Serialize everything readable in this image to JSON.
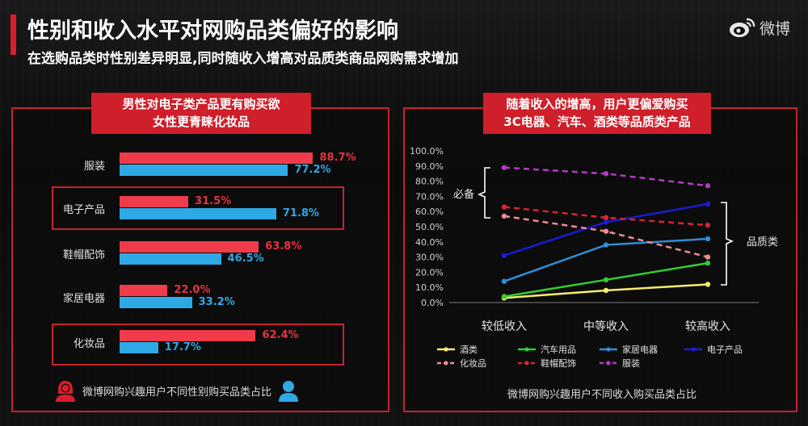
{
  "header": {
    "title": "性别和收入水平对网购品类偏好的影响",
    "subtitle": "在选购品类时性别差异明显,同时随收入增高对品质类商品网购需求增加",
    "logo_text": "微博"
  },
  "left_panel": {
    "tag_line1": "男性对电子类产品更有购买欲",
    "tag_line2": "女性更青睐化妆品",
    "footer": "微博网购兴趣用户不同性别购买品类占比"
  },
  "right_panel": {
    "tag_line1": "随着收入的增高，用户更偏爱购买",
    "tag_line2": "3C电器、汽车、酒类等品质类产品",
    "footer": "微博网购兴趣用户不同收入购买品类占比",
    "brace_top_label": "必备",
    "brace_right_label": "品质类"
  },
  "colors": {
    "accent": "#d81e2a",
    "female": "#ef3b4a",
    "male": "#2fa8e6"
  },
  "chart_data": [
    {
      "type": "bar",
      "categories": [
        "服装",
        "电子产品",
        "鞋帽配饰",
        "家居电器",
        "化妆品"
      ],
      "highlighted": [
        "电子产品",
        "化妆品"
      ],
      "series": [
        {
          "values": [
            88.7,
            31.5,
            63.8,
            22.0,
            62.4
          ],
          "labels": [
            "88.7%",
            "31.5%",
            "63.8%",
            "22.0%",
            "62.4%"
          ],
          "color": "#ef3b4a"
        },
        {
          "values": [
            77.2,
            71.8,
            46.5,
            33.2,
            17.7
          ],
          "labels": [
            "77.2%",
            "71.8%",
            "46.5%",
            "33.2%",
            "17.7%"
          ],
          "color": "#2fa8e6"
        }
      ],
      "xlim": [
        0,
        100
      ]
    },
    {
      "type": "line",
      "categories": [
        "较低收入",
        "中等收入",
        "较高收入"
      ],
      "yticks": [
        "0.0%",
        "10.0%",
        "20.0%",
        "30.0%",
        "40.0%",
        "50.0%",
        "60.0%",
        "70.0%",
        "80.0%",
        "90.0%",
        "100.0%"
      ],
      "ylim": [
        0,
        100
      ],
      "series": [
        {
          "name": "酒类",
          "values": [
            3,
            8,
            12
          ],
          "color": "#f4ee6a",
          "dash": false
        },
        {
          "name": "汽车用品",
          "values": [
            4,
            15,
            26
          ],
          "color": "#33cc33",
          "dash": false
        },
        {
          "name": "家居电器",
          "values": [
            14,
            38,
            42
          ],
          "color": "#2e8ed6",
          "dash": false
        },
        {
          "name": "电子产品",
          "values": [
            31,
            53,
            65
          ],
          "color": "#1a1ad6",
          "dash": false
        },
        {
          "name": "化妆品",
          "values": [
            57,
            47,
            30
          ],
          "color": "#f08a94",
          "dash": true
        },
        {
          "name": "鞋帽配饰",
          "values": [
            63,
            56,
            51
          ],
          "color": "#d62630",
          "dash": true
        },
        {
          "name": "服装",
          "values": [
            89,
            85,
            77
          ],
          "color": "#b13cc2",
          "dash": true
        }
      ]
    }
  ]
}
